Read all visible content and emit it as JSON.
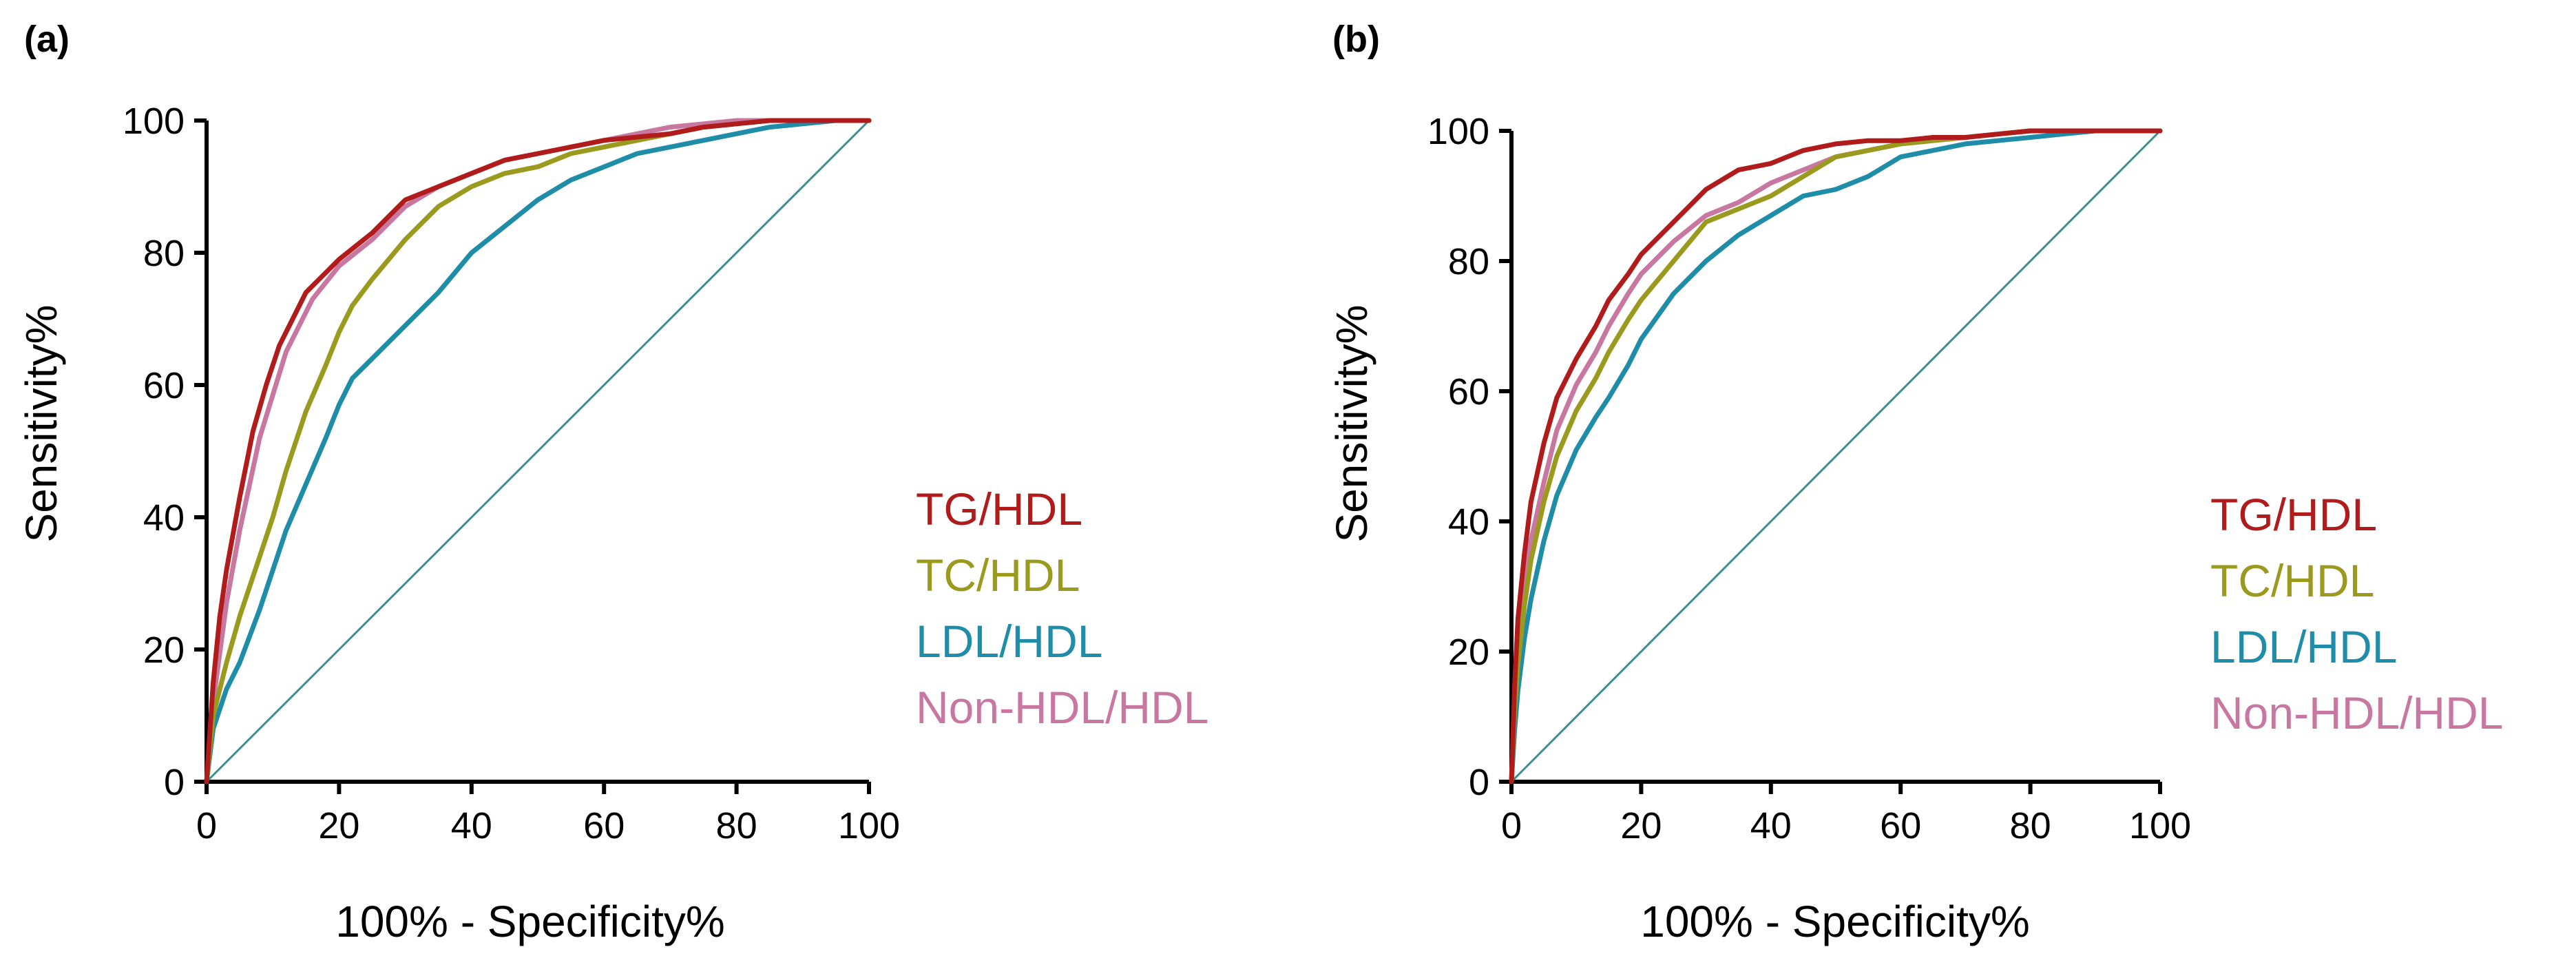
{
  "chart_data": [
    {
      "panel_label": "(a)",
      "type": "line",
      "xlabel": "100% - Specificity%",
      "ylabel": "Sensitivity%",
      "xlim": [
        0,
        100
      ],
      "ylim": [
        0,
        100
      ],
      "xticks": [
        "0",
        "20",
        "40",
        "60",
        "80",
        "100"
      ],
      "yticks": [
        "0",
        "20",
        "40",
        "60",
        "80",
        "100"
      ],
      "legend_position": "right",
      "reference_line": {
        "x": [
          0,
          100
        ],
        "y": [
          0,
          100
        ],
        "color": "#3e8e8e"
      },
      "series": [
        {
          "name": "Non-HDL/HDL",
          "color": "#c878a0",
          "x": [
            0,
            1,
            3,
            5,
            8,
            12,
            16,
            20,
            25,
            30,
            35,
            40,
            45,
            50,
            55,
            60,
            65,
            70,
            75,
            80,
            85,
            90,
            95,
            100
          ],
          "y": [
            0,
            12,
            27,
            38,
            52,
            65,
            73,
            78,
            82,
            87,
            90,
            92,
            94,
            95,
            96,
            97,
            98,
            99,
            99.5,
            100,
            100,
            100,
            100,
            100
          ]
        },
        {
          "name": "LDL/HDL",
          "color": "#1f8ca8",
          "x": [
            0,
            1,
            3,
            5,
            8,
            10,
            12,
            15,
            18,
            20,
            22,
            25,
            30,
            35,
            40,
            45,
            50,
            55,
            60,
            65,
            70,
            75,
            80,
            85,
            90,
            95,
            100
          ],
          "y": [
            0,
            8,
            14,
            18,
            26,
            32,
            38,
            45,
            52,
            57,
            61,
            64,
            69,
            74,
            80,
            84,
            88,
            91,
            93,
            95,
            96,
            97,
            98,
            99,
            99.5,
            100,
            100
          ]
        },
        {
          "name": "TC/HDL",
          "color": "#9a9a1e",
          "x": [
            0,
            1,
            3,
            5,
            8,
            10,
            12,
            15,
            18,
            20,
            22,
            25,
            30,
            35,
            40,
            45,
            50,
            55,
            60,
            65,
            70,
            75,
            80,
            85,
            90,
            95,
            100
          ],
          "y": [
            0,
            10,
            18,
            25,
            34,
            40,
            47,
            56,
            63,
            68,
            72,
            76,
            82,
            87,
            90,
            92,
            93,
            95,
            96,
            97,
            98,
            99,
            99.5,
            100,
            100,
            100,
            100
          ]
        },
        {
          "name": "TG/HDL",
          "color": "#b01c1c",
          "x": [
            0,
            1,
            2,
            3,
            5,
            7,
            9,
            11,
            13,
            15,
            18,
            20,
            25,
            30,
            35,
            40,
            45,
            50,
            55,
            60,
            65,
            70,
            75,
            80,
            85,
            90,
            95,
            100
          ],
          "y": [
            0,
            15,
            25,
            32,
            43,
            53,
            60,
            66,
            70,
            74,
            77,
            79,
            83,
            88,
            90,
            92,
            94,
            95,
            96,
            97,
            97.5,
            98,
            99,
            99.5,
            100,
            100,
            100,
            100
          ]
        }
      ]
    },
    {
      "panel_label": "(b)",
      "type": "line",
      "xlabel": "100% - Specificity%",
      "ylabel": "Sensitivity%",
      "xlim": [
        0,
        100
      ],
      "ylim": [
        0,
        100
      ],
      "xticks": [
        "0",
        "20",
        "40",
        "60",
        "80",
        "100"
      ],
      "yticks": [
        "0",
        "20",
        "40",
        "60",
        "80",
        "100"
      ],
      "legend_position": "right",
      "reference_line": {
        "x": [
          0,
          100
        ],
        "y": [
          0,
          100
        ],
        "color": "#3e8e8e"
      },
      "series": [
        {
          "name": "Non-HDL/HDL",
          "color": "#c878a0",
          "x": [
            0,
            0.5,
            1,
            2,
            3,
            5,
            7,
            10,
            13,
            15,
            18,
            20,
            25,
            30,
            35,
            40,
            45,
            50,
            55,
            60,
            65,
            70,
            75,
            80,
            85,
            90,
            95,
            100
          ],
          "y": [
            0,
            12,
            20,
            30,
            37,
            46,
            54,
            61,
            66,
            70,
            75,
            78,
            83,
            87,
            89,
            92,
            94,
            96,
            97,
            98,
            98.5,
            99,
            99.5,
            100,
            100,
            100,
            100,
            100
          ]
        },
        {
          "name": "LDL/HDL",
          "color": "#1f8ca8",
          "x": [
            0,
            0.5,
            1,
            2,
            3,
            5,
            7,
            10,
            13,
            15,
            18,
            20,
            25,
            30,
            35,
            40,
            45,
            50,
            55,
            60,
            65,
            70,
            75,
            80,
            85,
            90,
            95,
            100
          ],
          "y": [
            0,
            8,
            14,
            22,
            28,
            37,
            44,
            51,
            56,
            59,
            64,
            68,
            75,
            80,
            84,
            87,
            90,
            91,
            93,
            96,
            97,
            98,
            98.5,
            99,
            99.5,
            100,
            100,
            100
          ]
        },
        {
          "name": "TC/HDL",
          "color": "#9a9a1e",
          "x": [
            0,
            0.5,
            1,
            2,
            3,
            5,
            7,
            10,
            13,
            15,
            18,
            20,
            25,
            30,
            35,
            40,
            45,
            50,
            55,
            60,
            65,
            70,
            75,
            80,
            85,
            90,
            95,
            100
          ],
          "y": [
            0,
            11,
            18,
            27,
            34,
            43,
            50,
            57,
            62,
            66,
            71,
            74,
            80,
            86,
            88,
            90,
            93,
            96,
            97,
            98,
            98.5,
            99,
            99.5,
            100,
            100,
            100,
            100,
            100
          ]
        },
        {
          "name": "TG/HDL",
          "color": "#b01c1c",
          "x": [
            0,
            0.5,
            1,
            2,
            3,
            5,
            7,
            10,
            13,
            15,
            18,
            20,
            25,
            30,
            35,
            40,
            45,
            50,
            55,
            60,
            65,
            70,
            75,
            80,
            85,
            90,
            95,
            100
          ],
          "y": [
            0,
            15,
            25,
            35,
            43,
            52,
            59,
            65,
            70,
            74,
            78,
            81,
            86,
            91,
            94,
            95,
            97,
            98,
            98.5,
            98.5,
            99,
            99,
            99.5,
            100,
            100,
            100,
            100,
            100
          ]
        }
      ]
    }
  ],
  "legend": {
    "order": [
      "TG/HDL",
      "TC/HDL",
      "LDL/HDL",
      "Non-HDL/HDL"
    ]
  }
}
